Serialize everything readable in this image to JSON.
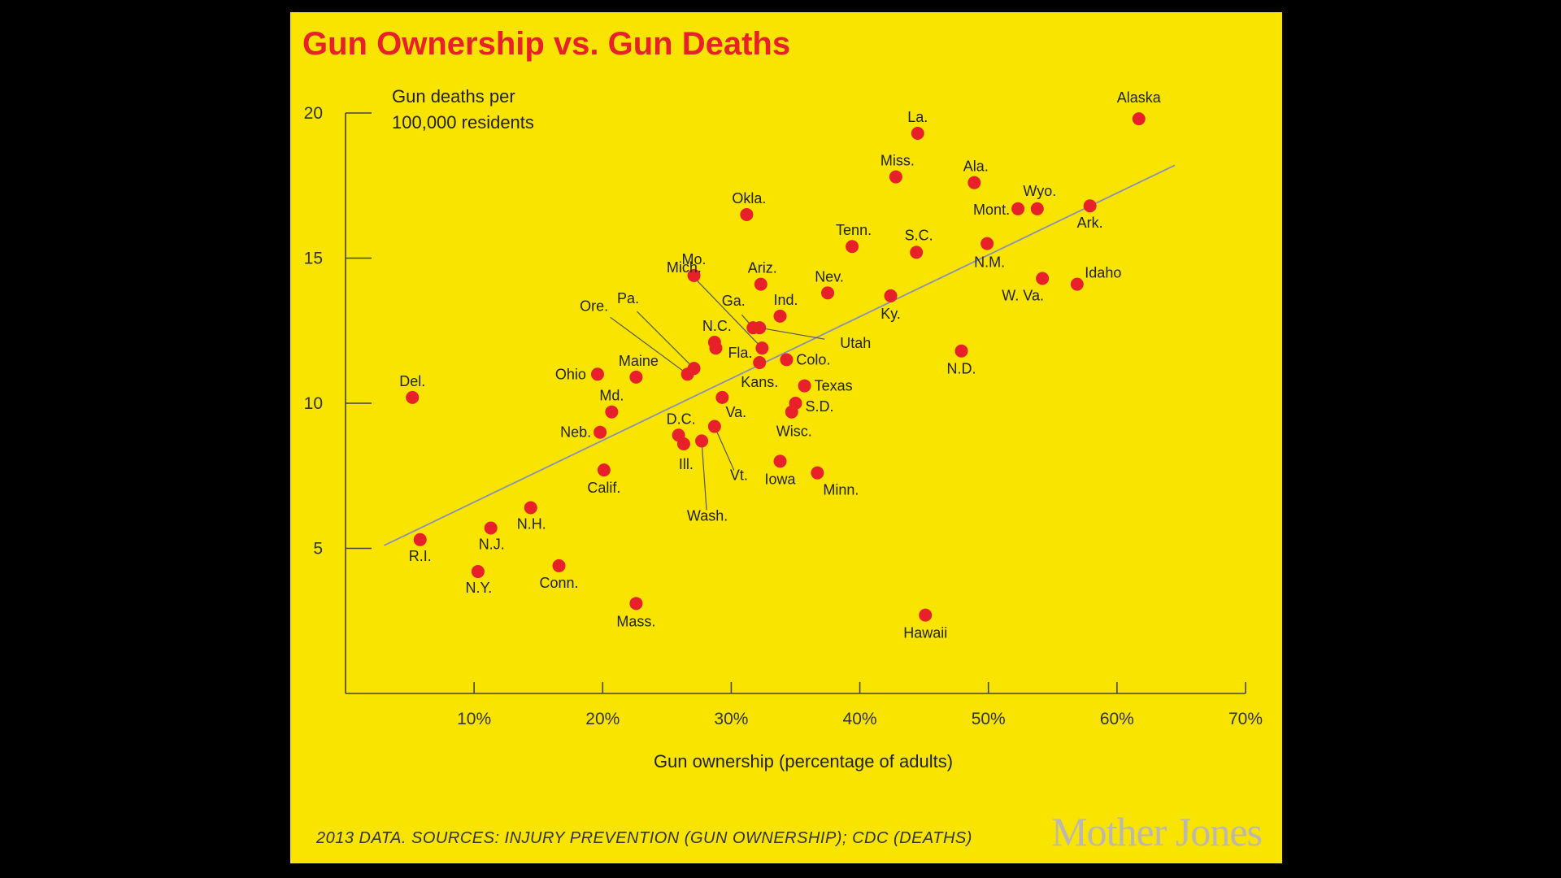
{
  "chart_data": {
    "type": "scatter",
    "title": "Gun Ownership vs. Gun Deaths",
    "ylabel_lines": [
      "Gun deaths per",
      "100,000 residents"
    ],
    "xlabel": "Gun ownership (percentage of adults)",
    "xlim": [
      0,
      70
    ],
    "ylim": [
      0,
      20
    ],
    "x_ticks": [
      10,
      20,
      30,
      40,
      50,
      60,
      70
    ],
    "x_tick_labels": [
      "10%",
      "20%",
      "30%",
      "40%",
      "50%",
      "60%",
      "70%"
    ],
    "y_ticks": [
      5,
      10,
      15,
      20
    ],
    "y_tick_labels": [
      "5",
      "10",
      "15",
      "20"
    ],
    "trendline": {
      "x": [
        3,
        64.5
      ],
      "y": [
        5.1,
        18.2
      ]
    },
    "grid": false,
    "points": [
      {
        "label": "Alaska",
        "x": 61.7,
        "y": 19.8
      },
      {
        "label": "La.",
        "x": 44.5,
        "y": 19.3
      },
      {
        "label": "Miss.",
        "x": 42.8,
        "y": 17.8
      },
      {
        "label": "Ala.",
        "x": 48.9,
        "y": 17.6
      },
      {
        "label": "Mont.",
        "x": 52.3,
        "y": 16.7
      },
      {
        "label": "Wyo.",
        "x": 53.8,
        "y": 16.7
      },
      {
        "label": "Ark.",
        "x": 57.9,
        "y": 16.8
      },
      {
        "label": "Okla.",
        "x": 31.2,
        "y": 16.5
      },
      {
        "label": "Tenn.",
        "x": 39.4,
        "y": 15.4
      },
      {
        "label": "S.C.",
        "x": 44.4,
        "y": 15.2
      },
      {
        "label": "N.M.",
        "x": 49.9,
        "y": 15.5
      },
      {
        "label": "Idaho",
        "x": 56.9,
        "y": 14.1
      },
      {
        "label": "W. Va.",
        "x": 54.2,
        "y": 14.3
      },
      {
        "label": "Mo.",
        "x": 27.1,
        "y": 14.4
      },
      {
        "label": "Ariz.",
        "x": 32.3,
        "y": 14.1
      },
      {
        "label": "Nev.",
        "x": 37.5,
        "y": 13.8
      },
      {
        "label": "Ky.",
        "x": 42.4,
        "y": 13.7
      },
      {
        "label": "Ind.",
        "x": 33.8,
        "y": 13.0
      },
      {
        "label": "Ga.",
        "x": 31.7,
        "y": 12.6
      },
      {
        "label": "Utah",
        "x": 32.2,
        "y": 12.6
      },
      {
        "label": "N.C.",
        "x": 28.7,
        "y": 12.1
      },
      {
        "label": "Fla.",
        "x": 28.8,
        "y": 11.9
      },
      {
        "label": "Pa.",
        "x": 27.1,
        "y": 11.2
      },
      {
        "label": "Ore.",
        "x": 26.6,
        "y": 11.0
      },
      {
        "label": "Mich.",
        "x": 32.4,
        "y": 11.9
      },
      {
        "label": "Colo.",
        "x": 34.3,
        "y": 11.5
      },
      {
        "label": "Kans.",
        "x": 32.2,
        "y": 11.4
      },
      {
        "label": "N.D.",
        "x": 47.9,
        "y": 11.8
      },
      {
        "label": "Texas",
        "x": 35.7,
        "y": 10.6
      },
      {
        "label": "S.D.",
        "x": 35.0,
        "y": 10.0
      },
      {
        "label": "Wisc.",
        "x": 34.7,
        "y": 9.7
      },
      {
        "label": "Maine",
        "x": 22.6,
        "y": 10.9
      },
      {
        "label": "Ohio",
        "x": 19.6,
        "y": 11.0
      },
      {
        "label": "Del.",
        "x": 5.2,
        "y": 10.2
      },
      {
        "label": "Md.",
        "x": 20.7,
        "y": 9.7
      },
      {
        "label": "Va.",
        "x": 29.3,
        "y": 10.2
      },
      {
        "label": "Neb.",
        "x": 19.8,
        "y": 9.0
      },
      {
        "label": "D.C.",
        "x": 25.9,
        "y": 8.9
      },
      {
        "label": "Ill.",
        "x": 26.3,
        "y": 8.6
      },
      {
        "label": "Wash.",
        "x": 27.7,
        "y": 8.7
      },
      {
        "label": "Vt.",
        "x": 28.7,
        "y": 9.2
      },
      {
        "label": "Iowa",
        "x": 33.8,
        "y": 8.0
      },
      {
        "label": "Minn.",
        "x": 36.7,
        "y": 7.6
      },
      {
        "label": "Calif.",
        "x": 20.1,
        "y": 7.7
      },
      {
        "label": "N.H.",
        "x": 14.4,
        "y": 6.4
      },
      {
        "label": "N.J.",
        "x": 11.3,
        "y": 5.7
      },
      {
        "label": "R.I.",
        "x": 5.8,
        "y": 5.3
      },
      {
        "label": "N.Y.",
        "x": 10.3,
        "y": 4.2
      },
      {
        "label": "Conn.",
        "x": 16.6,
        "y": 4.4
      },
      {
        "label": "Mass.",
        "x": 22.6,
        "y": 3.1
      },
      {
        "label": "Hawaii",
        "x": 45.1,
        "y": 2.7
      }
    ]
  },
  "footer": {
    "source_note": "2013 DATA. SOURCES: INJURY PREVENTION (GUN OWNERSHIP); CDC (DEATHS)",
    "logo_text": "Mother Jones"
  },
  "colors": {
    "background": "#F9E400",
    "points": "#E8202A",
    "title": "#E8202A",
    "trendline": "#8a8fb8"
  }
}
